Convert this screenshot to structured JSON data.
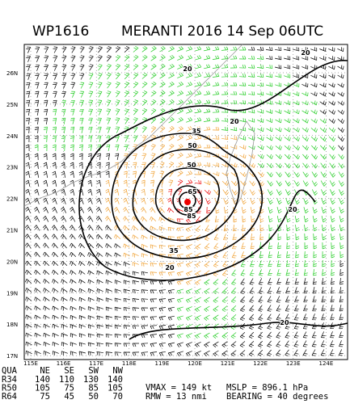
{
  "header": {
    "id": "WP1616",
    "title": "MERANTI 2016 14 Sep 06UTC"
  },
  "map": {
    "lat_labels": [
      "26N",
      "25N",
      "24N",
      "23N",
      "22N",
      "21N",
      "20N",
      "19N",
      "18N",
      "17N"
    ],
    "lon_labels": [
      "115E",
      "116E",
      "117E",
      "118E",
      "119E",
      "120E",
      "121E",
      "122E",
      "123E",
      "124E"
    ],
    "contour_labels": [
      "20",
      "20",
      "20",
      "20",
      "20",
      "20",
      "35",
      "35",
      "50",
      "50",
      "65",
      "85",
      "85"
    ]
  },
  "table": {
    "header": [
      "QUA",
      "NE",
      "SE",
      "SW",
      "NW"
    ],
    "rows": [
      [
        "R34",
        140,
        110,
        130,
        140
      ],
      [
        "R50",
        105,
        75,
        85,
        105
      ],
      [
        "R64",
        75,
        45,
        50,
        70
      ]
    ]
  },
  "stats": {
    "vmax": "VMAX = 149 kt",
    "mslp": "MSLP = 896.1 hPa",
    "rmw": "RMW = 13 nmi",
    "bearing": "BEARING = 40 degrees"
  }
}
